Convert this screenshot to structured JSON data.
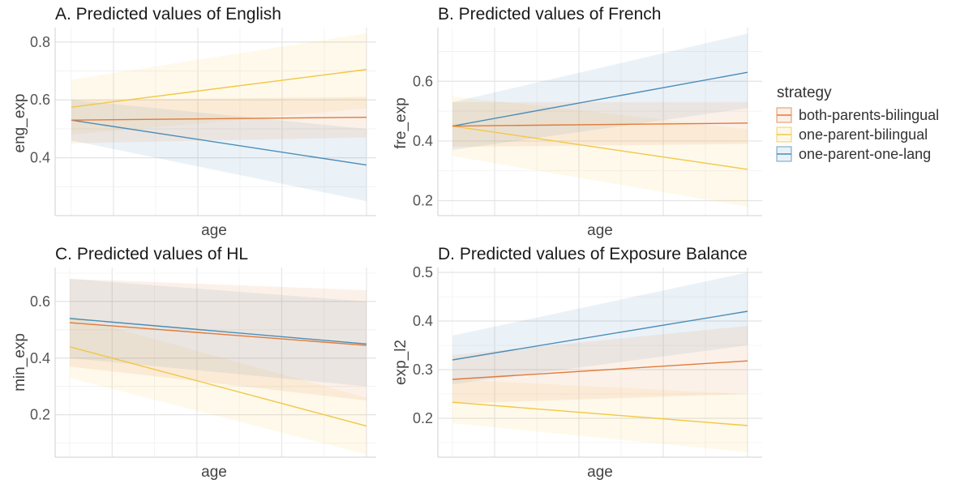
{
  "colors": {
    "both-parents-bilingual": "#e07b39",
    "one-parent-bilingual": "#f2c744",
    "one-parent-one-lang": "#4b8db8"
  },
  "legend": {
    "title": "strategy",
    "items": [
      {
        "key": "both-parents-bilingual",
        "label": "both-parents-bilingual"
      },
      {
        "key": "one-parent-bilingual",
        "label": "one-parent-bilingual"
      },
      {
        "key": "one-parent-one-lang",
        "label": "one-parent-one-lang"
      }
    ]
  },
  "chart_data": [
    {
      "type": "line",
      "title": "A. Predicted values of English",
      "xlabel": "age",
      "ylabel": "eng_exp",
      "x": [
        0,
        1
      ],
      "ylim": [
        0.2,
        0.85
      ],
      "yticks": [
        0.4,
        0.6,
        0.8
      ],
      "grid": true,
      "series": [
        {
          "name": "both-parents-bilingual",
          "values": [
            0.53,
            0.54
          ],
          "lower": [
            0.45,
            0.47
          ],
          "upper": [
            0.6,
            0.61
          ]
        },
        {
          "name": "one-parent-bilingual",
          "values": [
            0.575,
            0.705
          ],
          "lower": [
            0.48,
            0.57
          ],
          "upper": [
            0.67,
            0.83
          ]
        },
        {
          "name": "one-parent-one-lang",
          "values": [
            0.53,
            0.375
          ],
          "lower": [
            0.46,
            0.25
          ],
          "upper": [
            0.6,
            0.5
          ]
        }
      ]
    },
    {
      "type": "line",
      "title": "B. Predicted values of French",
      "xlabel": "age",
      "ylabel": "fre_exp",
      "x": [
        0,
        1
      ],
      "ylim": [
        0.15,
        0.78
      ],
      "yticks": [
        0.2,
        0.4,
        0.6
      ],
      "grid": true,
      "series": [
        {
          "name": "both-parents-bilingual",
          "values": [
            0.45,
            0.46
          ],
          "lower": [
            0.38,
            0.39
          ],
          "upper": [
            0.53,
            0.53
          ]
        },
        {
          "name": "one-parent-bilingual",
          "values": [
            0.45,
            0.305
          ],
          "lower": [
            0.35,
            0.18
          ],
          "upper": [
            0.55,
            0.44
          ]
        },
        {
          "name": "one-parent-one-lang",
          "values": [
            0.45,
            0.63
          ],
          "lower": [
            0.37,
            0.51
          ],
          "upper": [
            0.53,
            0.76
          ]
        }
      ]
    },
    {
      "type": "line",
      "title": "C. Predicted values of HL",
      "xlabel": "age",
      "ylabel": "min_exp",
      "x": [
        0,
        1
      ],
      "ylim": [
        0.05,
        0.72
      ],
      "yticks": [
        0.2,
        0.4,
        0.6
      ],
      "grid": true,
      "series": [
        {
          "name": "both-parents-bilingual",
          "values": [
            0.525,
            0.445
          ],
          "lower": [
            0.37,
            0.25
          ],
          "upper": [
            0.68,
            0.64
          ]
        },
        {
          "name": "one-parent-bilingual",
          "values": [
            0.44,
            0.16
          ],
          "lower": [
            0.33,
            0.06
          ],
          "upper": [
            0.55,
            0.26
          ]
        },
        {
          "name": "one-parent-one-lang",
          "values": [
            0.54,
            0.45
          ],
          "lower": [
            0.4,
            0.3
          ],
          "upper": [
            0.68,
            0.6
          ]
        }
      ]
    },
    {
      "type": "line",
      "title": "D. Predicted values of Exposure Balance",
      "xlabel": "age",
      "ylabel": "exp_l2",
      "x": [
        0,
        1
      ],
      "ylim": [
        0.12,
        0.51
      ],
      "yticks": [
        0.2,
        0.3,
        0.4,
        0.5
      ],
      "grid": true,
      "series": [
        {
          "name": "both-parents-bilingual",
          "values": [
            0.28,
            0.318
          ],
          "lower": [
            0.23,
            0.25
          ],
          "upper": [
            0.33,
            0.39
          ]
        },
        {
          "name": "one-parent-bilingual",
          "values": [
            0.233,
            0.185
          ],
          "lower": [
            0.19,
            0.13
          ],
          "upper": [
            0.28,
            0.25
          ]
        },
        {
          "name": "one-parent-one-lang",
          "values": [
            0.32,
            0.42
          ],
          "lower": [
            0.27,
            0.35
          ],
          "upper": [
            0.37,
            0.5
          ]
        }
      ]
    }
  ]
}
